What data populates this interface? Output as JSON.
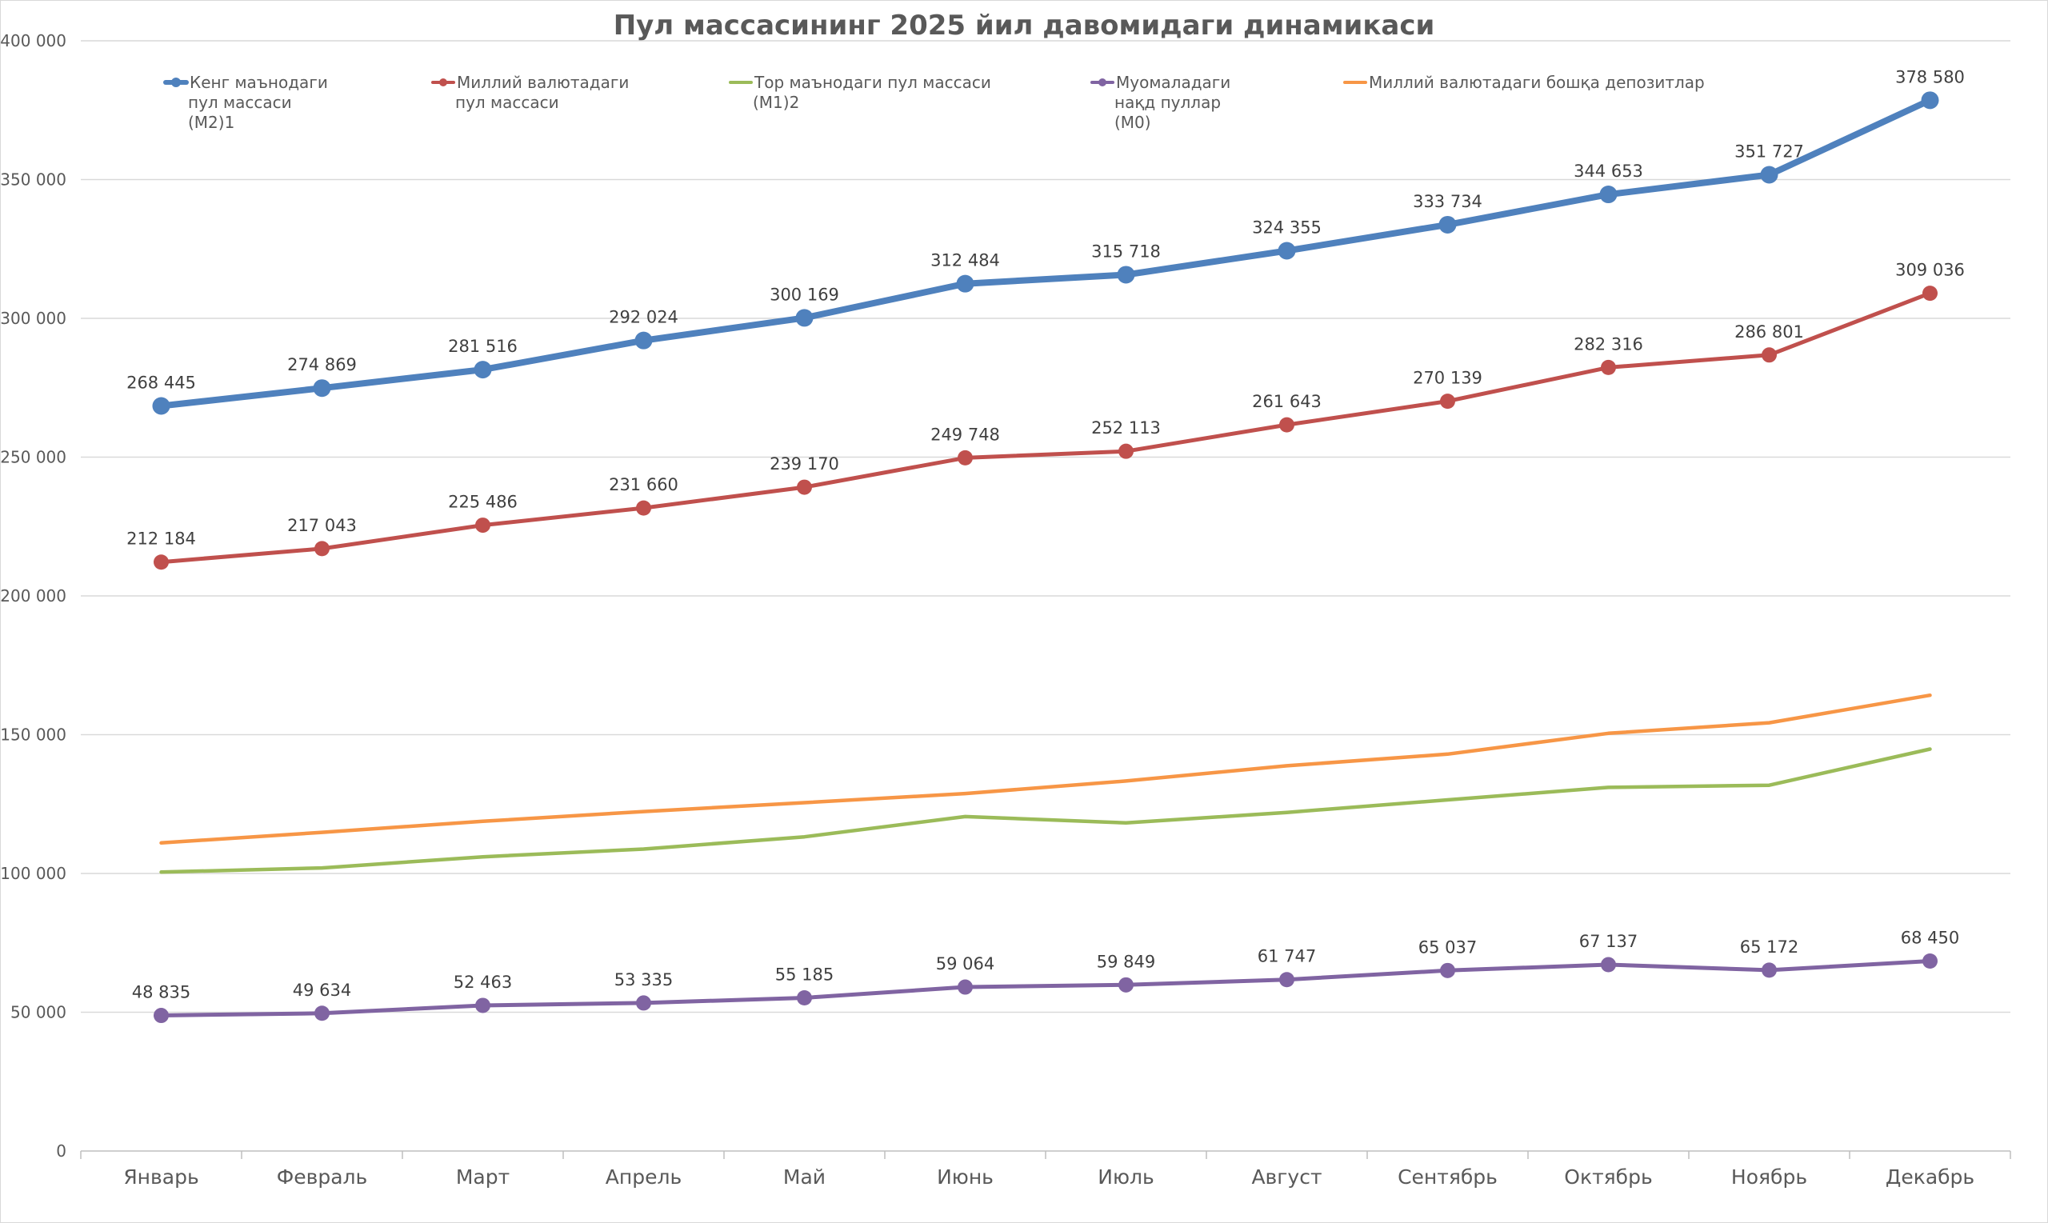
{
  "chart_data": {
    "type": "line",
    "title": "Пул массасининг 2025 йил давомидаги динамикаси",
    "xlabel": "",
    "ylabel": "",
    "ylim": [
      0,
      400000
    ],
    "ytick_step": 50000,
    "ytick_labels": [
      "0",
      "50 000",
      "100 000",
      "150 000",
      "200 000",
      "250 000",
      "300 000",
      "350 000",
      "400 000"
    ],
    "grid": true,
    "legend_position": "top",
    "categories": [
      "Январь",
      "Февраль",
      "Март",
      "Апрель",
      "Май",
      "Июнь",
      "Июль",
      "Август",
      "Сентябрь",
      "Октябрь",
      "Ноябрь",
      "Декабрь"
    ],
    "series": [
      {
        "name": "Кенг маънодаги пул массаси (М2)1",
        "legend_lines": [
          "Кенг маънодаги",
          "пул массаси",
          "(М2)1"
        ],
        "color": "#4f81bd",
        "markers": true,
        "data_labels": true,
        "values": [
          268445,
          274869,
          281516,
          292024,
          300169,
          312484,
          315718,
          324355,
          333734,
          344653,
          351727,
          378580
        ],
        "labels": [
          "268 445",
          "274 869",
          "281 516",
          "292 024",
          "300 169",
          "312 484",
          "315 718",
          "324 355",
          "333 734",
          "344 653",
          "351 727",
          "378 580"
        ]
      },
      {
        "name": "Миллий валютадаги пул массаси",
        "legend_lines": [
          "Миллий валютадаги",
          "пул массаси"
        ],
        "color": "#c0504d",
        "markers": true,
        "data_labels": true,
        "values": [
          212184,
          217043,
          225486,
          231660,
          239170,
          249748,
          252113,
          261643,
          270139,
          282316,
          286801,
          309036
        ],
        "labels": [
          "212 184",
          "217 043",
          "225 486",
          "231 660",
          "239 170",
          "249 748",
          "252 113",
          "261 643",
          "270 139",
          "282 316",
          "286 801",
          "309 036"
        ]
      },
      {
        "name": "Тор маънодаги пул массаси (М1)2",
        "legend_lines": [
          "Тор маънодаги пул массаси",
          "(М1)2"
        ],
        "color": "#9bbb59",
        "markers": false,
        "data_labels": false,
        "values": [
          100500,
          102000,
          106000,
          108800,
          113200,
          120500,
          118200,
          122000,
          126500,
          131000,
          131800,
          144800
        ]
      },
      {
        "name": "Муомаладаги нақд пуллар (М0)",
        "legend_lines": [
          "Муомаладаги",
          "нақд пуллар",
          "(М0)"
        ],
        "color": "#8064a2",
        "markers": true,
        "data_labels": true,
        "values": [
          48835,
          49634,
          52463,
          53335,
          55185,
          59064,
          59849,
          61747,
          65037,
          67137,
          65172,
          68450
        ],
        "labels": [
          "48 835",
          "49 634",
          "52 463",
          "53 335",
          "55 185",
          "59 064",
          "59 849",
          "61 747",
          "65 037",
          "67 137",
          "65 172",
          "68 450"
        ]
      },
      {
        "name": "Миллий валютадаги бошқа депозитлар",
        "legend_lines": [
          "Миллий валютадаги бошқа депозитлар"
        ],
        "color": "#f79646",
        "markers": false,
        "data_labels": false,
        "values": [
          111000,
          114800,
          118800,
          122300,
          125500,
          128800,
          133300,
          138800,
          143000,
          150500,
          154300,
          164200
        ]
      }
    ]
  }
}
